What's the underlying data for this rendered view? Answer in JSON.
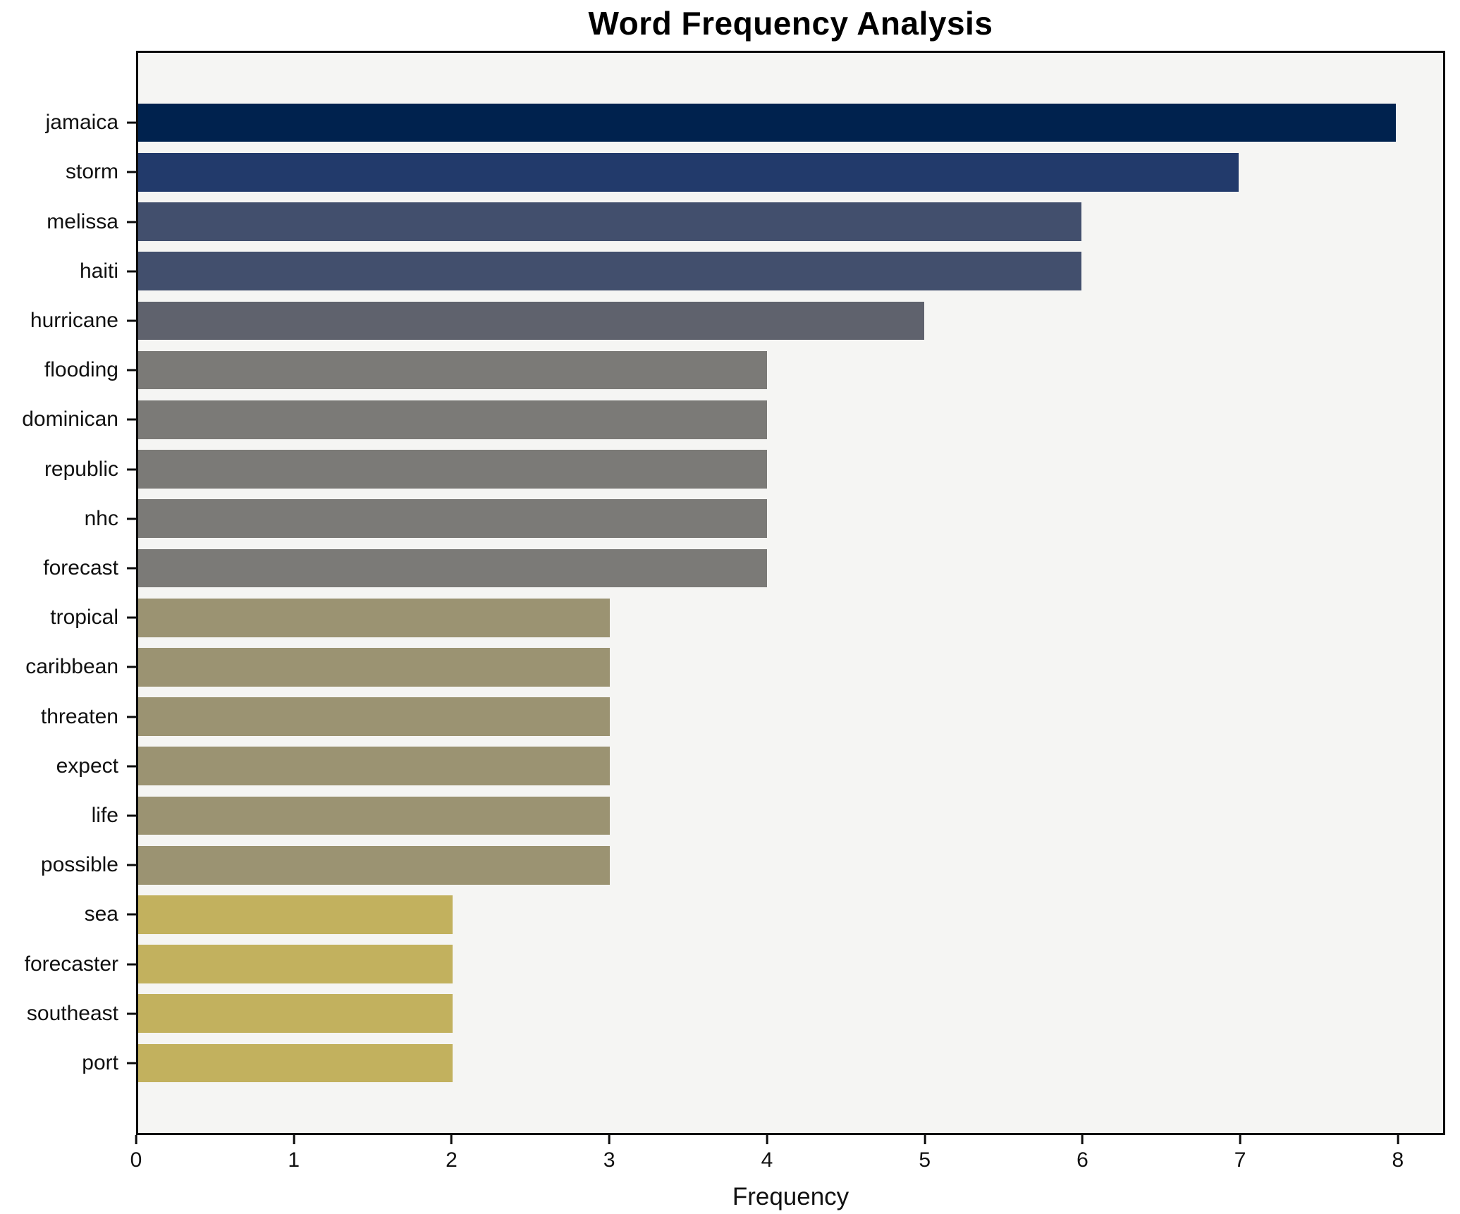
{
  "chart_data": {
    "type": "bar",
    "orientation": "horizontal",
    "title": "Word Frequency Analysis",
    "xlabel": "Frequency",
    "ylabel": "",
    "categories": [
      "jamaica",
      "storm",
      "melissa",
      "haiti",
      "hurricane",
      "flooding",
      "dominican",
      "republic",
      "nhc",
      "forecast",
      "tropical",
      "caribbean",
      "threaten",
      "expect",
      "life",
      "possible",
      "sea",
      "forecaster",
      "southeast",
      "port"
    ],
    "values": [
      8,
      7,
      6,
      6,
      5,
      4,
      4,
      4,
      4,
      4,
      3,
      3,
      3,
      3,
      3,
      3,
      2,
      2,
      2,
      2
    ],
    "bar_colors": [
      "#00224e",
      "#223a6b",
      "#424f6d",
      "#424f6d",
      "#5f626d",
      "#7b7a77",
      "#7b7a77",
      "#7b7a77",
      "#7b7a77",
      "#7b7a77",
      "#9b9372",
      "#9b9372",
      "#9b9372",
      "#9b9372",
      "#9b9372",
      "#9b9372",
      "#c2b15e",
      "#c2b15e",
      "#c2b15e",
      "#c2b15e"
    ],
    "xlim": [
      0,
      8.3
    ],
    "xticks": [
      0,
      1,
      2,
      3,
      4,
      5,
      6,
      7,
      8
    ],
    "grid": false,
    "legend": "none",
    "plot_background": "#f5f5f3",
    "figure_background": "#ffffff"
  }
}
